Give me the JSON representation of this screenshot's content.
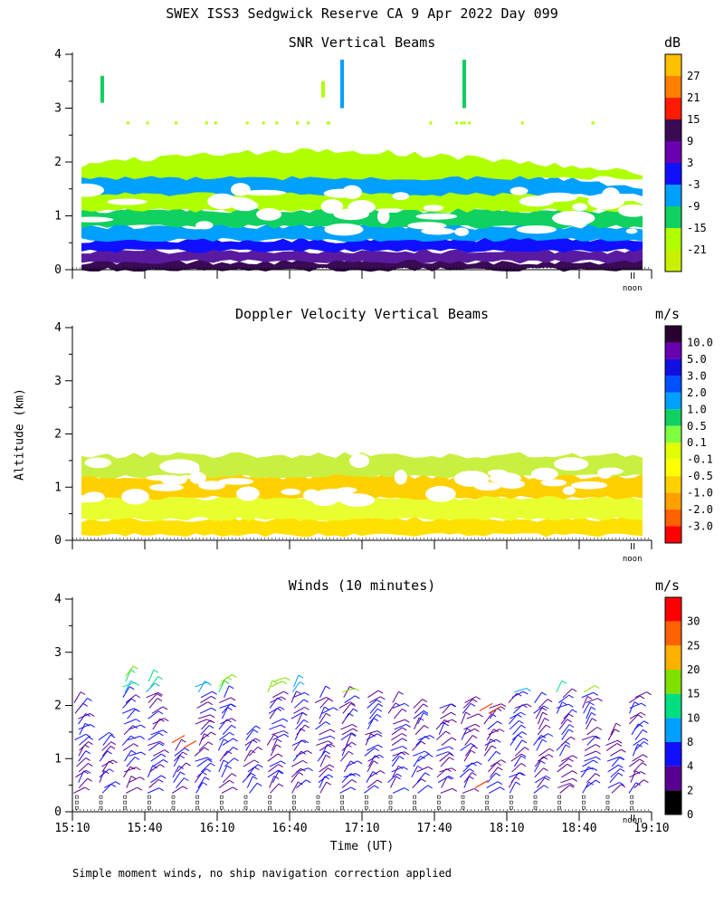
{
  "title": "SWEX ISS3 Sedgwick Reserve CA   9 Apr 2022 Day 099",
  "ylabel": "Altitude (km)",
  "xlabel": "Time (UT)",
  "noon_label": "noon",
  "footnote": "Simple moment winds, no ship navigation correction applied",
  "chart_data": [
    {
      "type": "heatmap",
      "title": "SNR Vertical Beams",
      "unit": "dB",
      "ylim": [
        0,
        4
      ],
      "yticks": [
        "0",
        "1",
        "2",
        "3",
        "4"
      ],
      "colorbar": {
        "labels": [
          "27",
          "21",
          "15",
          "9",
          "3",
          "-3",
          "-9",
          "-15",
          "-21"
        ],
        "colors": [
          "#ffc000",
          "#ff8000",
          "#ff1a00",
          "#3a0a55",
          "#6a00b0",
          "#1010ff",
          "#00a0ff",
          "#10d060",
          "#b0ff00",
          "#c8f000"
        ]
      },
      "layers": [
        {
          "from": 0.0,
          "to": 0.15,
          "color": "#3a0a55"
        },
        {
          "from": 0.15,
          "to": 0.35,
          "color": "#5a1aa0"
        },
        {
          "from": 0.35,
          "to": 0.55,
          "color": "#1010ff"
        },
        {
          "from": 0.55,
          "to": 0.8,
          "color": "#00a0ff"
        },
        {
          "from": 0.8,
          "to": 1.1,
          "color": "#10d060"
        },
        {
          "from": 1.1,
          "to": 1.4,
          "color": "#b0ff00"
        },
        {
          "from": 1.4,
          "to": 1.7,
          "color": "#00a0ff"
        },
        {
          "from": 1.7,
          "to": 1.95,
          "color": "#b0ff00"
        }
      ]
    },
    {
      "type": "heatmap",
      "title": "Doppler Velocity Vertical Beams",
      "unit": "m/s",
      "ylim": [
        0,
        4
      ],
      "yticks": [
        "0",
        "1",
        "2",
        "3",
        "4"
      ],
      "colorbar": {
        "labels": [
          "10.0",
          "5.0",
          "3.0",
          "2.0",
          "1.0",
          "0.5",
          "0.1",
          "-0.1",
          "-0.5",
          "-1.0",
          "-2.0",
          "-3.0"
        ],
        "colors": [
          "#2a0030",
          "#6a00b0",
          "#1010e0",
          "#0050ff",
          "#00a0ff",
          "#10d060",
          "#80ff40",
          "#e0ff00",
          "#ffff00",
          "#ffd000",
          "#ffa000",
          "#ff6000",
          "#ff0000"
        ]
      },
      "layers": [
        {
          "from": 0.1,
          "to": 0.4,
          "color": "#ffe000"
        },
        {
          "from": 0.4,
          "to": 0.8,
          "color": "#e8ff30"
        },
        {
          "from": 0.8,
          "to": 1.2,
          "color": "#ffd000"
        },
        {
          "from": 1.2,
          "to": 1.6,
          "color": "#c8f040"
        }
      ]
    },
    {
      "type": "scatter",
      "title": "Winds (10 minutes)",
      "unit": "m/s",
      "ylim": [
        0,
        4
      ],
      "yticks": [
        "0",
        "1",
        "2",
        "3",
        "4"
      ],
      "xticks": [
        "15:10",
        "15:40",
        "16:10",
        "16:40",
        "17:10",
        "17:40",
        "18:10",
        "18:40",
        "19:10"
      ],
      "colorbar": {
        "labels": [
          "30",
          "25",
          "20",
          "15",
          "10",
          "8",
          "4",
          "2",
          "0"
        ],
        "colors": [
          "#ff0000",
          "#ff6000",
          "#ffb000",
          "#80e000",
          "#00e080",
          "#00a0ff",
          "#1010ff",
          "#5a0090",
          "#000000"
        ]
      },
      "profile_times": [
        "15:12",
        "15:22",
        "15:32",
        "15:42",
        "15:52",
        "16:02",
        "16:12",
        "16:22",
        "16:32",
        "16:42",
        "16:52",
        "17:02",
        "17:12",
        "17:22",
        "17:32",
        "17:42",
        "17:52",
        "18:02",
        "18:12",
        "18:22",
        "18:32",
        "18:42",
        "18:52",
        "19:02"
      ],
      "profile_tops_km": [
        2.1,
        1.4,
        2.6,
        2.5,
        1.2,
        2.4,
        2.5,
        1.5,
        2.5,
        2.4,
        2.2,
        2.3,
        2.2,
        2.1,
        2.0,
        2.0,
        2.1,
        2.0,
        2.3,
        2.1,
        2.3,
        2.3,
        1.5,
        2.2
      ]
    }
  ]
}
